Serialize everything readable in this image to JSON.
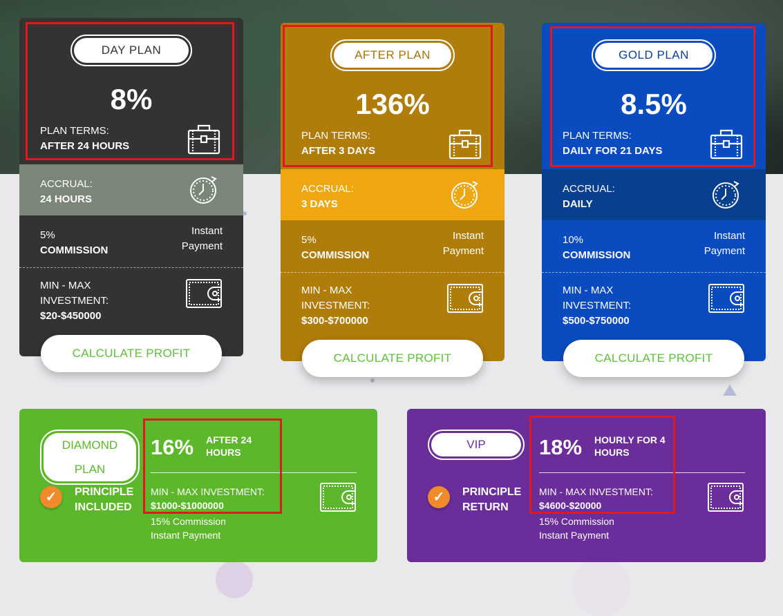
{
  "plans": [
    {
      "name": "DAY PLAN",
      "percent": "8%",
      "terms_label": "PLAN TERMS:",
      "terms_value": "AFTER 24 HOURS",
      "accrual_label": "ACCRUAL:",
      "accrual_value": "24 HOURS",
      "commission_pct": "5%",
      "commission_label": "COMMISSION",
      "payment_line1": "Instant",
      "payment_line2": "Payment",
      "invest_line1": "MIN - MAX",
      "invest_line2": "INVESTMENT:",
      "invest_value": "$20-$450000",
      "button": "CALCULATE PROFIT",
      "colors": {
        "top": "#333333",
        "accrual": "#7b8679",
        "accent_text": "#333333"
      }
    },
    {
      "name": "AFTER PLAN",
      "percent": "136%",
      "terms_label": "PLAN TERMS:",
      "terms_value": "AFTER 3 DAYS",
      "accrual_label": "ACCRUAL:",
      "accrual_value": "3 DAYS",
      "commission_pct": "5%",
      "commission_label": "COMMISSION",
      "payment_line1": "Instant",
      "payment_line2": "Payment",
      "invest_line1": "MIN - MAX",
      "invest_line2": "INVESTMENT:",
      "invest_value": "$300-$700000",
      "button": "CALCULATE PROFIT",
      "colors": {
        "top": "#b17d0a",
        "accrual": "#eea711",
        "accent_text": "#a8730a"
      }
    },
    {
      "name": "GOLD PLAN",
      "percent": "8.5%",
      "terms_label": "PLAN TERMS:",
      "terms_value": "DAILY FOR 21 DAYS",
      "accrual_label": "ACCRUAL:",
      "accrual_value": "DAILY",
      "commission_pct": "10%",
      "commission_label": "COMMISSION",
      "payment_line1": "Instant",
      "payment_line2": "Payment",
      "invest_line1": "MIN - MAX",
      "invest_line2": "INVESTMENT:",
      "invest_value": "$500-$750000",
      "button": "CALCULATE PROFIT",
      "colors": {
        "top": "#0a4bc0",
        "accrual": "#083f8f",
        "accent_text": "#0a3f9c"
      }
    }
  ],
  "bottom_plans": [
    {
      "name_line1": "DIAMOND",
      "name_line2": "PLAN",
      "percent": "16%",
      "terms_line1": "AFTER 24",
      "terms_line2": "HOURS",
      "invest_label": "MIN - MAX INVESTMENT:",
      "invest_value": "$1000-$1000000",
      "commission": "15% Commission",
      "payment": "Instant Payment",
      "principle_line1": "PRINCIPLE",
      "principle_line2": "INCLUDED",
      "colors": {
        "bg": "#5cb82a",
        "accent_text": "#5cb82a"
      }
    },
    {
      "name_line1": "VIP",
      "percent": "18%",
      "terms_line1": "HOURLY FOR 4",
      "terms_line2": "HOURS",
      "invest_label": "MIN - MAX INVESTMENT:",
      "invest_value": "$4600-$20000",
      "commission": "15% Commission",
      "payment": "Instant Payment",
      "principle_line1": "PRINCIPLE",
      "principle_line2": "RETURN",
      "colors": {
        "bg": "#6a2d9a",
        "accent_text": "#6a2d9a"
      }
    }
  ],
  "icons": {
    "terms": "briefcase-icon",
    "accrual": "clock-icon",
    "investment": "wallet-icon",
    "principle": "checkmark-icon"
  },
  "highlight_color": "#e0191f"
}
